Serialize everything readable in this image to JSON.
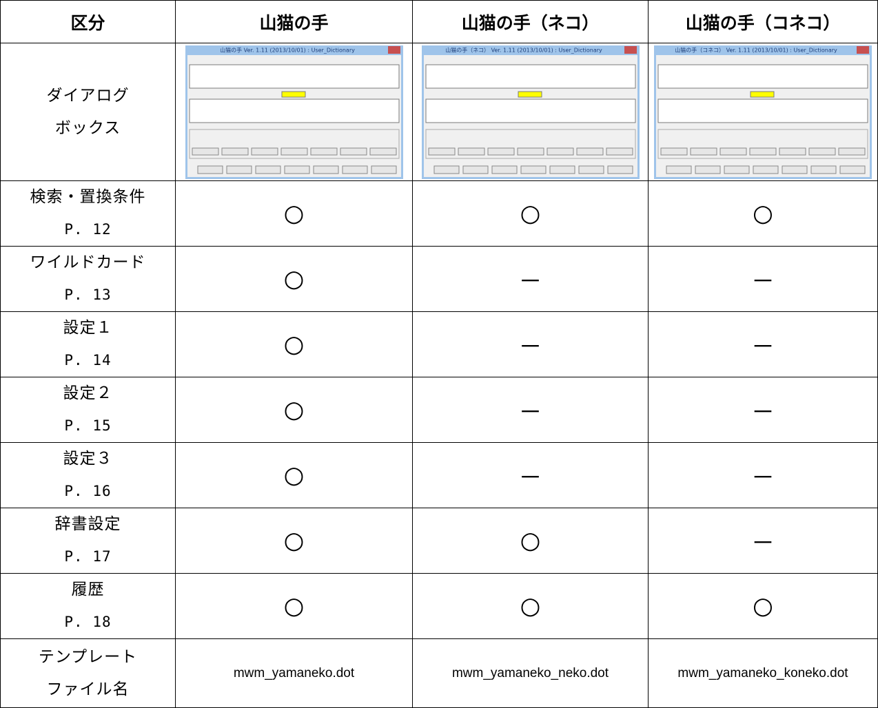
{
  "table": {
    "header": [
      "区分",
      "山猫の手",
      "山猫の手（ネコ）",
      "山猫の手（コネコ）"
    ],
    "dialog_row": {
      "label": [
        "ダイアログ",
        "ボックス"
      ],
      "dialog_titles": [
        "山猫の手 Ver. 1.11 (2013/10/01) : User_Dictionary",
        "山猫の手（ネコ） Ver. 1.11 (2013/10/01) : User_Dictionary",
        "山猫の手（コネコ） Ver. 1.11 (2013/10/01) : User_Dictionary"
      ]
    },
    "rows": [
      {
        "label": [
          "検索・置換条件",
          "P. 12"
        ],
        "cells": [
          "○",
          "○",
          "○"
        ]
      },
      {
        "label": [
          "ワイルドカード",
          "P. 13"
        ],
        "cells": [
          "○",
          "－",
          "－"
        ]
      },
      {
        "label": [
          "設定１",
          "P. 14"
        ],
        "cells": [
          "○",
          "－",
          "－"
        ]
      },
      {
        "label": [
          "設定２",
          "P. 15"
        ],
        "cells": [
          "○",
          "－",
          "－"
        ]
      },
      {
        "label": [
          "設定３",
          "P. 16"
        ],
        "cells": [
          "○",
          "－",
          "－"
        ]
      },
      {
        "label": [
          "辞書設定",
          "P. 17"
        ],
        "cells": [
          "○",
          "○",
          "－"
        ]
      },
      {
        "label": [
          "履歴",
          "P. 18"
        ],
        "cells": [
          "○",
          "○",
          "○"
        ]
      },
      {
        "label": [
          "テンプレート",
          "ファイル名"
        ],
        "cells": [
          "mwm_yamaneko.dot",
          "mwm_yamaneko_neko.dot",
          "mwm_yamaneko_koneko.dot"
        ]
      }
    ]
  }
}
